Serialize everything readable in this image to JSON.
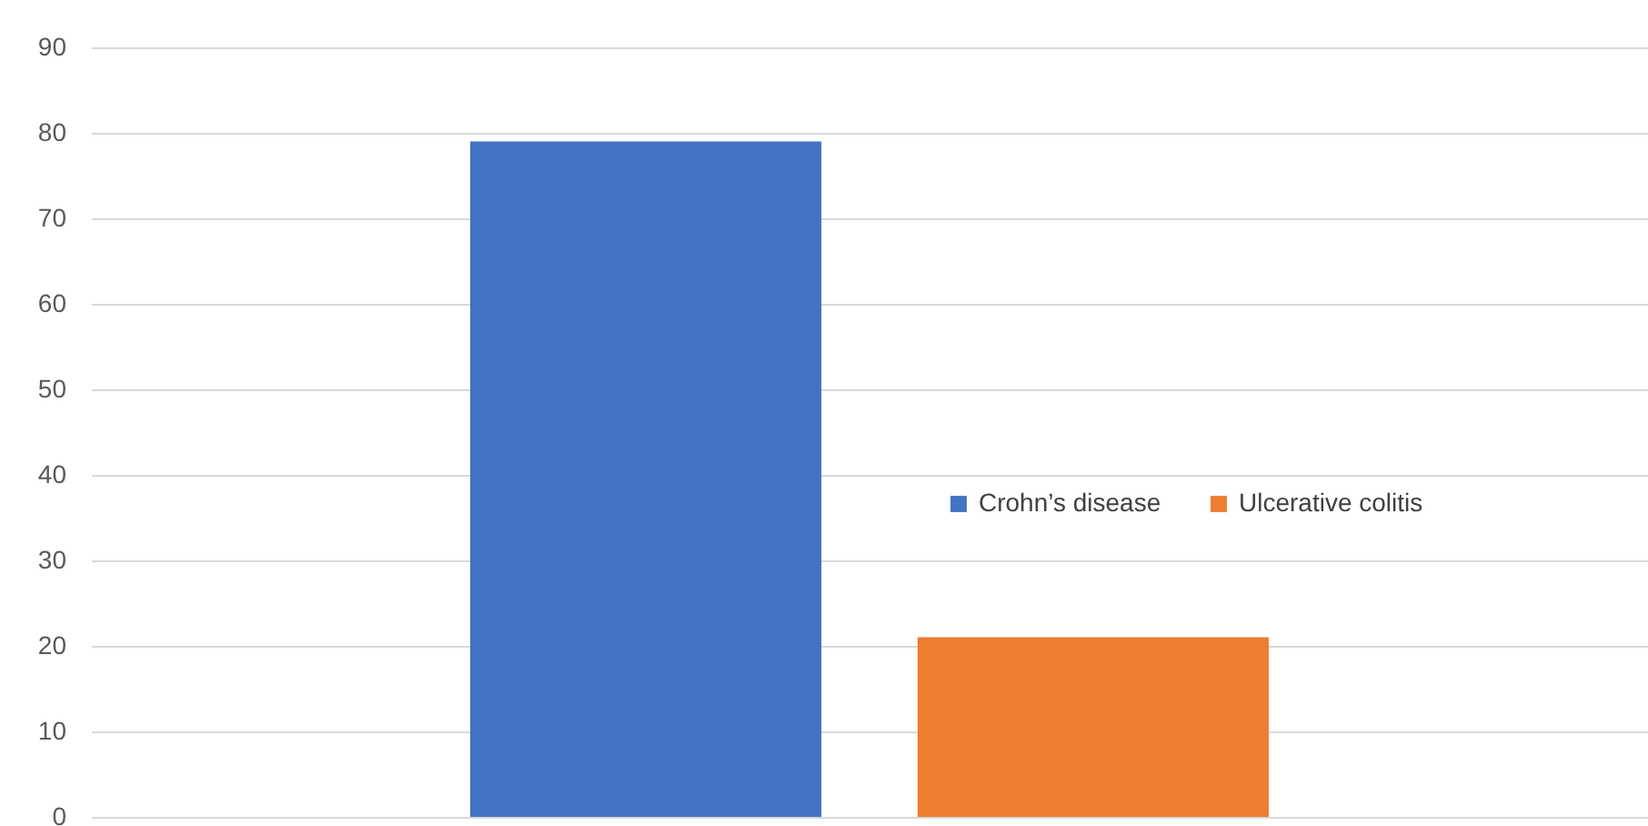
{
  "chart_data": {
    "type": "bar",
    "categories": [
      null
    ],
    "series": [
      {
        "name": "Crohn’s disease",
        "color": "#4472c4",
        "values": [
          79
        ]
      },
      {
        "name": "Ulcerative colitis",
        "color": "#ed7d31",
        "values": [
          21
        ]
      }
    ],
    "ylim": [
      0,
      90
    ],
    "yticks": [
      0,
      10,
      20,
      30,
      40,
      50,
      60,
      70,
      80,
      90
    ],
    "grid": "y",
    "legend": "right",
    "tick_labels": "y"
  }
}
